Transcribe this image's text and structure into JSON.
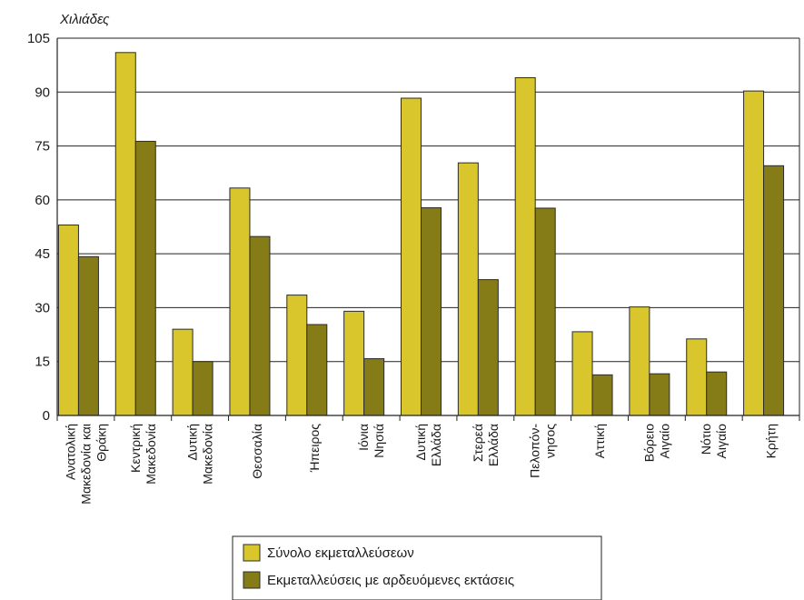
{
  "chart_data": {
    "type": "bar",
    "ylabel": "Χιλιάδες",
    "ylim": [
      0,
      105
    ],
    "yticks": [
      0,
      15,
      30,
      45,
      60,
      75,
      90,
      105
    ],
    "grid": true,
    "legend_position": "bottom",
    "categories": [
      [
        "Ανατολική",
        "Μακεδονία και",
        "Θράκη"
      ],
      [
        "Κεντρική",
        "Μακεδονία"
      ],
      [
        "Δυτική",
        "Μακεδονία"
      ],
      [
        "Θεσσαλία"
      ],
      [
        "Ήπειρος"
      ],
      [
        "Ιόνια",
        "Νησιά"
      ],
      [
        "Δυτική",
        "Ελλάδα"
      ],
      [
        "Στερεά",
        "Ελλάδα"
      ],
      [
        "Πελοπόν-",
        "νησος"
      ],
      [
        "Αττική"
      ],
      [
        "Βόρειο",
        "Αιγαίο"
      ],
      [
        "Νότιο",
        "Αιγαίο"
      ],
      [
        "Κρήτη"
      ]
    ],
    "series": [
      {
        "name": "Σύνολο εκμεταλλεύσεων",
        "color": "#d8c62c",
        "values": [
          53,
          101,
          24,
          63.3,
          33.5,
          29,
          88.3,
          70.3,
          94,
          23.3,
          30.2,
          21.3,
          90.3
        ]
      },
      {
        "name": "Εκμεταλλεύσεις με αρδευόμενες εκτάσεις",
        "color": "#857b17",
        "values": [
          44.2,
          76.3,
          15,
          49.8,
          25.3,
          15.8,
          57.8,
          37.8,
          57.7,
          11.3,
          11.6,
          12.1,
          69.5
        ]
      }
    ]
  }
}
